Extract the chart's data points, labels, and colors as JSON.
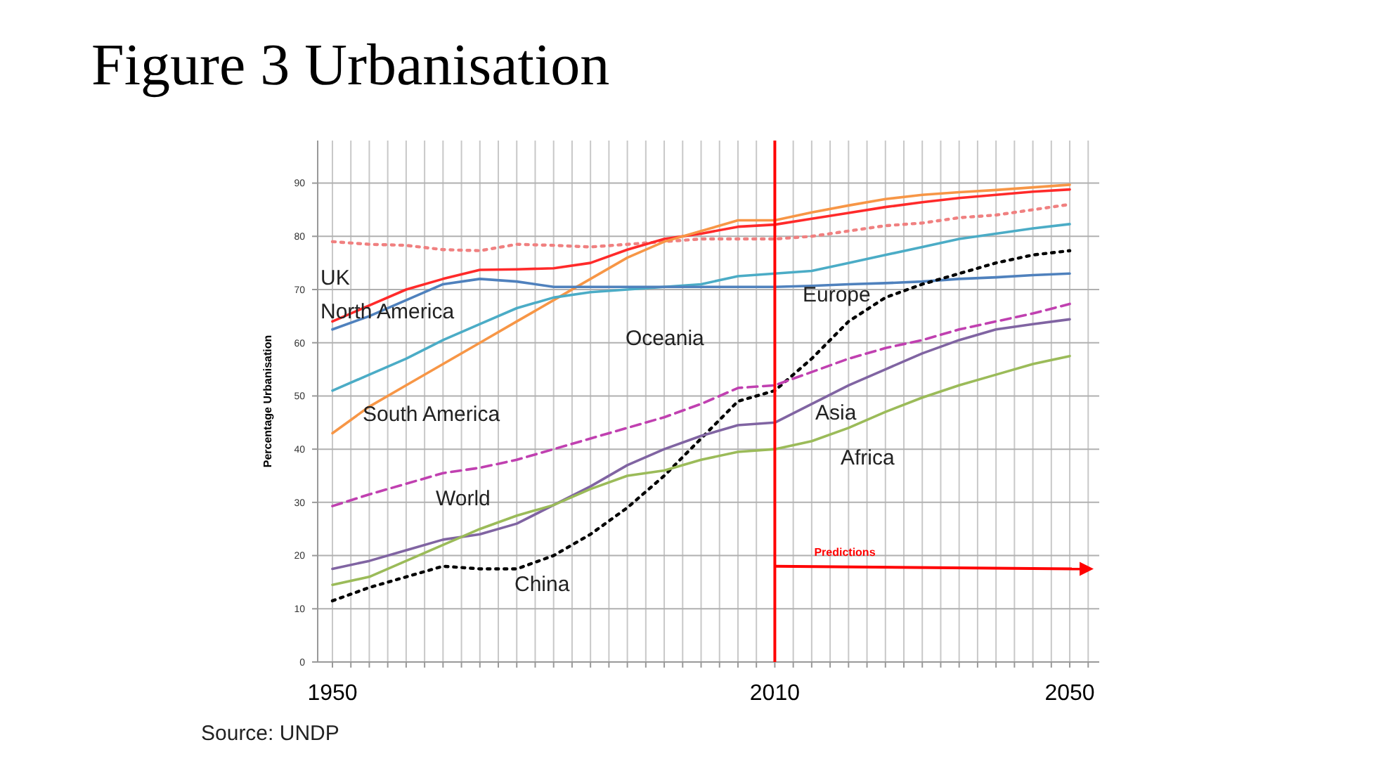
{
  "chart_data": {
    "type": "line",
    "title": "Figure 3 Urbanisation",
    "ylabel": "Percentage Urbanisation",
    "x": [
      1950,
      1955,
      1960,
      1965,
      1970,
      1975,
      1980,
      1985,
      1990,
      1995,
      2000,
      2005,
      2010,
      2015,
      2020,
      2025,
      2030,
      2035,
      2040,
      2045,
      2050
    ],
    "xlim": [
      1948,
      2054
    ],
    "xticks": [
      {
        "value": 1950,
        "label": "1950"
      },
      {
        "value": 1952.5,
        "label": null
      },
      {
        "value": 1955,
        "label": null
      },
      {
        "value": 1957.5,
        "label": null
      },
      {
        "value": 1960,
        "label": null
      },
      {
        "value": 1962.5,
        "label": null
      },
      {
        "value": 1965,
        "label": null
      },
      {
        "value": 1967.5,
        "label": null
      },
      {
        "value": 1970,
        "label": null
      },
      {
        "value": 1972.5,
        "label": null
      },
      {
        "value": 1975,
        "label": null
      },
      {
        "value": 1977.5,
        "label": null
      },
      {
        "value": 1980,
        "label": null
      },
      {
        "value": 1982.5,
        "label": null
      },
      {
        "value": 1985,
        "label": null
      },
      {
        "value": 1987.5,
        "label": null
      },
      {
        "value": 1990,
        "label": null
      },
      {
        "value": 1992.5,
        "label": null
      },
      {
        "value": 1995,
        "label": null
      },
      {
        "value": 1997.5,
        "label": null
      },
      {
        "value": 2000,
        "label": null
      },
      {
        "value": 2002.5,
        "label": null
      },
      {
        "value": 2005,
        "label": null
      },
      {
        "value": 2007.5,
        "label": null
      },
      {
        "value": 2010,
        "label": "2010"
      },
      {
        "value": 2012.5,
        "label": null
      },
      {
        "value": 2015,
        "label": null
      },
      {
        "value": 2017.5,
        "label": null
      },
      {
        "value": 2020,
        "label": null
      },
      {
        "value": 2022.5,
        "label": null
      },
      {
        "value": 2025,
        "label": null
      },
      {
        "value": 2027.5,
        "label": null
      },
      {
        "value": 2030,
        "label": null
      },
      {
        "value": 2032.5,
        "label": null
      },
      {
        "value": 2035,
        "label": null
      },
      {
        "value": 2037.5,
        "label": null
      },
      {
        "value": 2040,
        "label": null
      },
      {
        "value": 2042.5,
        "label": null
      },
      {
        "value": 2045,
        "label": null
      },
      {
        "value": 2047.5,
        "label": null
      },
      {
        "value": 2050,
        "label": "2050"
      },
      {
        "value": 2052.5,
        "label": null
      }
    ],
    "ylim": [
      0,
      98
    ],
    "yticks": [
      0,
      10,
      20,
      30,
      40,
      50,
      60,
      70,
      80,
      90
    ],
    "grid": true,
    "marker": "none",
    "series": [
      {
        "color": "#f08080",
        "line_style": "dotted",
        "values": [
          79,
          78.5,
          78.3,
          77.5,
          77.3,
          78.5,
          78.3,
          78,
          78.5,
          79,
          79.5,
          79.5,
          79.5,
          80,
          81,
          82,
          82.5,
          83.5,
          84,
          85,
          86
        ]
      },
      {
        "color": "#ff2a2a",
        "line_style": "solid",
        "values": [
          64,
          67,
          70,
          72,
          73.7,
          73.8,
          74,
          75,
          77.5,
          79.5,
          80.5,
          81.8,
          82.2,
          83.3,
          84.4,
          85.5,
          86.4,
          87.2,
          87.8,
          88.4,
          88.8
        ]
      },
      {
        "color": "#f79646",
        "line_style": "solid",
        "values": [
          43,
          48,
          52,
          56,
          60,
          64,
          68,
          72,
          76,
          79,
          81,
          83,
          83,
          84.5,
          85.8,
          87,
          87.8,
          88.3,
          88.7,
          89.2,
          89.7
        ]
      },
      {
        "color": "#4bacc6",
        "line_style": "solid",
        "values": [
          51,
          54,
          57,
          60.5,
          63.5,
          66.5,
          68.5,
          69.5,
          70,
          70.5,
          71,
          72.5,
          73,
          73.5,
          75,
          76.5,
          78,
          79.5,
          80.5,
          81.5,
          82.3
        ]
      },
      {
        "color": "#4f81bd",
        "line_style": "solid",
        "values": [
          62.5,
          65,
          68,
          71,
          72,
          71.5,
          70.5,
          70.5,
          70.5,
          70.5,
          70.5,
          70.5,
          70.5,
          70.7,
          71,
          71.2,
          71.5,
          72,
          72.3,
          72.7,
          73
        ]
      },
      {
        "color": "#000000",
        "line_style": "dotted",
        "values": [
          11.5,
          14,
          16,
          18,
          17.5,
          17.5,
          20,
          24,
          29,
          35,
          42,
          49,
          51,
          57,
          64,
          68.5,
          71,
          73,
          75,
          76.5,
          77.3
        ]
      },
      {
        "color": "#c040b0",
        "line_style": "dashed",
        "values": [
          29.3,
          31.5,
          33.5,
          35.5,
          36.5,
          38,
          40,
          42,
          44,
          46,
          48.5,
          51.5,
          52,
          54.5,
          57,
          59,
          60.5,
          62.5,
          64,
          65.5,
          67.3
        ]
      },
      {
        "color": "#8064a2",
        "line_style": "solid",
        "values": [
          17.5,
          19,
          21,
          23,
          24,
          26,
          29.5,
          33,
          37,
          40,
          42.5,
          44.5,
          45,
          48.5,
          52,
          55,
          58,
          60.5,
          62.5,
          63.5,
          64.4
        ]
      },
      {
        "color": "#9bbb59",
        "line_style": "solid",
        "values": [
          14.5,
          16,
          19,
          22,
          25,
          27.5,
          29.5,
          32.5,
          35,
          36,
          38,
          39.5,
          40,
          41.5,
          44,
          47,
          49.7,
          52,
          54,
          56,
          57.5
        ]
      }
    ],
    "ref_lines": [
      {
        "axis": "x",
        "value": 2010,
        "label": "Predictions",
        "color": "#ff0000",
        "line_style": "solid"
      }
    ],
    "annotations": [
      "UK",
      "North America",
      "Oceania",
      "South America",
      "World",
      "China",
      "Europe",
      "Asia",
      "Africa",
      "Source: UNDP"
    ]
  }
}
